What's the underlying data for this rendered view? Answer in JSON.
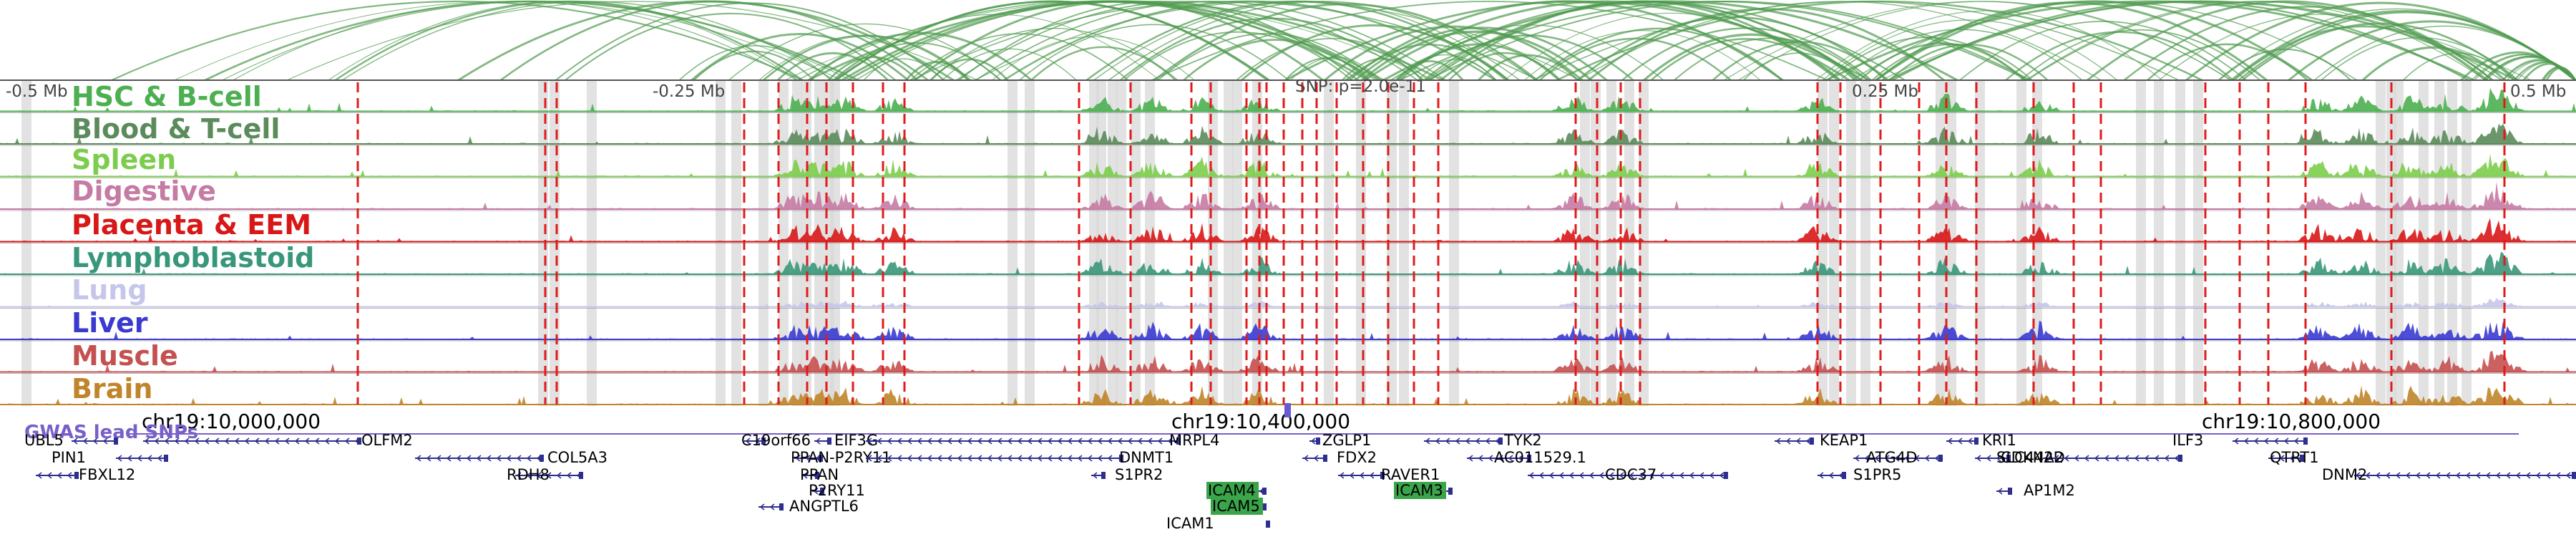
{
  "colors": {
    "arc": "#4e9a4e",
    "red_marker": "#e01b1b",
    "gray_band": "#d8d8d8",
    "snp_color": "#6a5acd",
    "gene_color": "#2e2e8f",
    "highlight_gene_bg": "#3aa54a"
  },
  "browser": {
    "region": {
      "chrom": "chr19",
      "start": 9870000,
      "end": 10960000
    },
    "position_labels": [
      "-0.5 Mb",
      "-0.25 Mb",
      "0.25 Mb",
      "0.5 Mb"
    ],
    "snp_label": "SNP: p=2.0e-11",
    "coordinate_labels": [
      "chr19:10,000,000",
      "chr19:10,400,000",
      "chr19:10,800,000"
    ],
    "gwas_label": "GWAS lead SNPs",
    "tracks": [
      {
        "name": "HSC & B-cell",
        "color": "#4caf50"
      },
      {
        "name": "Blood & T-cell",
        "color": "#5b8b5b"
      },
      {
        "name": "Spleen",
        "color": "#7ccd4d"
      },
      {
        "name": "Digestive",
        "color": "#c57ba3"
      },
      {
        "name": "Placenta & EEM",
        "color": "#d81717"
      },
      {
        "name": "Lymphoblastoid",
        "color": "#38977a"
      },
      {
        "name": "Lung",
        "color": "#c6c6ea"
      },
      {
        "name": "Liver",
        "color": "#3a3ad0"
      },
      {
        "name": "Muscle",
        "color": "#c55050"
      },
      {
        "name": "Brain",
        "color": "#c0852a"
      }
    ],
    "genes": [
      {
        "name": "UBL5"
      },
      {
        "name": "PIN1"
      },
      {
        "name": "FBXL12"
      },
      {
        "name": "OLFM2"
      },
      {
        "name": "COL5A3"
      },
      {
        "name": "RDH8"
      },
      {
        "name": "C19orf66"
      },
      {
        "name": "PPAN-P2RY11"
      },
      {
        "name": "PPAN"
      },
      {
        "name": "P2RY11"
      },
      {
        "name": "ANGPTL6"
      },
      {
        "name": "EIF3G"
      },
      {
        "name": "MRPL4"
      },
      {
        "name": "DNMT1"
      },
      {
        "name": "S1PR2"
      },
      {
        "name": "ICAM4"
      },
      {
        "name": "ICAM5"
      },
      {
        "name": "ICAM1"
      },
      {
        "name": "ZGLP1"
      },
      {
        "name": "FDX2"
      },
      {
        "name": "RAVER1"
      },
      {
        "name": "ICAM3"
      },
      {
        "name": "TYK2"
      },
      {
        "name": "AC011529.1"
      },
      {
        "name": "CDC37"
      },
      {
        "name": "KEAP1"
      },
      {
        "name": "ATG4D"
      },
      {
        "name": "S1PR5"
      },
      {
        "name": "KRI1"
      },
      {
        "name": "CDKN2D"
      },
      {
        "name": "AP1M2"
      },
      {
        "name": "SLC44A2"
      },
      {
        "name": "ILF3"
      },
      {
        "name": "QTRT1"
      },
      {
        "name": "DNM2"
      }
    ]
  }
}
